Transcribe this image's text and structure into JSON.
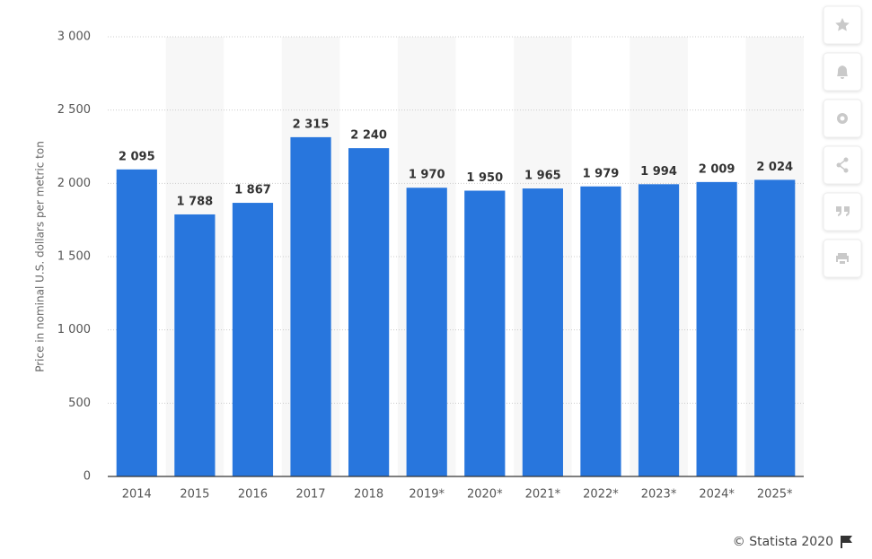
{
  "chart_data": {
    "type": "bar",
    "y_label": "Price in nominal U.S. dollars per metric ton",
    "categories": [
      "2014",
      "2015",
      "2016",
      "2017",
      "2018",
      "2019*",
      "2020*",
      "2021*",
      "2022*",
      "2023*",
      "2024*",
      "2025*"
    ],
    "values": [
      2095,
      1788,
      1867,
      2315,
      2240,
      1970,
      1950,
      1965,
      1979,
      1994,
      2009,
      2024
    ],
    "value_labels": [
      "2 095",
      "1 788",
      "1 867",
      "2 315",
      "2 240",
      "1 970",
      "1 950",
      "1 965",
      "1 979",
      "1 994",
      "2 009",
      "2 024"
    ],
    "color": "#2876dd",
    "ylim": [
      0,
      3000
    ],
    "yticks": [
      0,
      500,
      {
        "value": 1000,
        "label": "1 000"
      },
      {
        "value": 1500,
        "label": "1 500"
      },
      {
        "value": 2000,
        "label": "2 000"
      },
      {
        "value": 2500,
        "label": "2 500"
      },
      {
        "value": 3000,
        "label": "3 000"
      }
    ],
    "grid": true,
    "source": "© Statista 2020"
  }
}
